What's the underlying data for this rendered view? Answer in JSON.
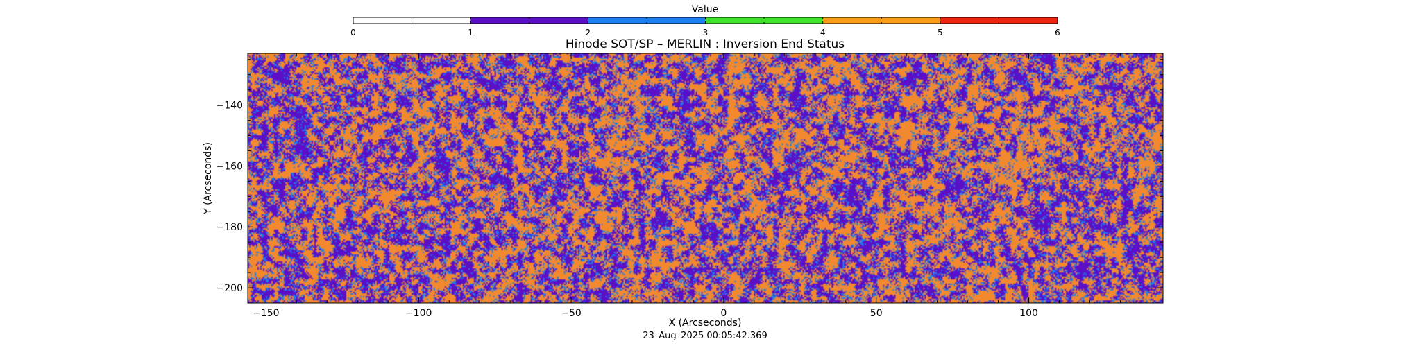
{
  "chart_data": {
    "type": "heatmap",
    "title": "Hinode SOT/SP – MERLIN : Inversion End Status",
    "xlabel": "X (Arcseconds)",
    "ylabel": "Y (Arcseconds)",
    "timestamp": "23–Aug–2025 00:05:42.369",
    "xlim": [
      -156,
      144
    ],
    "ylim": [
      -205,
      -123
    ],
    "x_ticks": [
      {
        "value": -150,
        "label": "−150"
      },
      {
        "value": -100,
        "label": "−100"
      },
      {
        "value": -50,
        "label": "−50"
      },
      {
        "value": 0,
        "label": "0"
      },
      {
        "value": 50,
        "label": "50"
      },
      {
        "value": 100,
        "label": "100"
      }
    ],
    "y_ticks": [
      {
        "value": -140,
        "label": "−140"
      },
      {
        "value": -160,
        "label": "−160"
      },
      {
        "value": -180,
        "label": "−180"
      },
      {
        "value": -200,
        "label": "−200"
      }
    ],
    "colorbar": {
      "title": "Value",
      "range": [
        0,
        6
      ],
      "tick_values": [
        0,
        1,
        2,
        3,
        4,
        5,
        6
      ],
      "tick_labels": [
        "0",
        "1",
        "2",
        "3",
        "4",
        "5",
        "6"
      ],
      "bands": [
        {
          "from": 0,
          "to": 1,
          "color": "#ffffff"
        },
        {
          "from": 1,
          "to": 2,
          "color": "#5b10c8"
        },
        {
          "from": 2,
          "to": 3,
          "color": "#1a7ff0"
        },
        {
          "from": 3,
          "to": 4,
          "color": "#3ee32a"
        },
        {
          "from": 4,
          "to": 5,
          "color": "#fb9d16"
        },
        {
          "from": 5,
          "to": 6,
          "color": "#f0240e"
        }
      ]
    },
    "pixel_value_fractions": [
      {
        "value": 1,
        "color": "#5b10c8",
        "fraction": 0.42
      },
      {
        "value": 2,
        "color": "#1a7ff0",
        "fraction": 0.07
      },
      {
        "value": 4,
        "color": "#f2892e",
        "fraction": 0.51
      }
    ]
  }
}
